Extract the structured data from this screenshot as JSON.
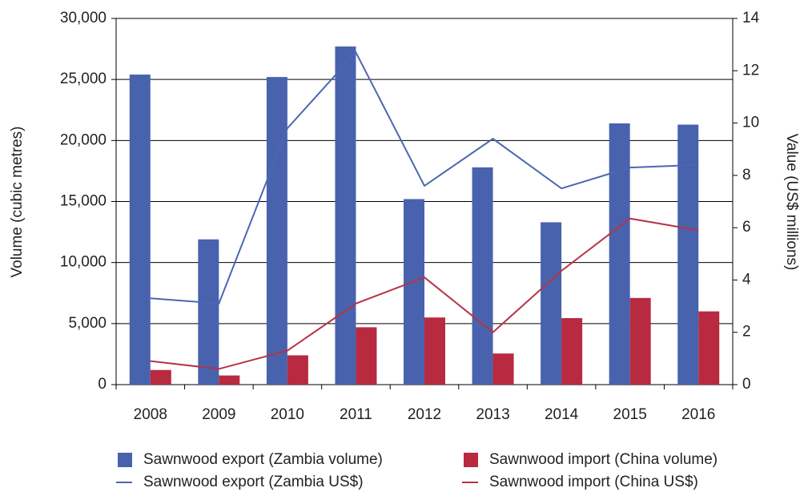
{
  "chart_data": {
    "type": "bar",
    "categories": [
      "2008",
      "2009",
      "2010",
      "2011",
      "2012",
      "2013",
      "2014",
      "2015",
      "2016"
    ],
    "series": [
      {
        "name": "Sawnwood export (Zambia volume)",
        "type": "bar",
        "color": "#4862ad",
        "values": [
          25400,
          11900,
          25200,
          27700,
          15200,
          17800,
          13300,
          21400,
          21300
        ]
      },
      {
        "name": "Sawnwood import (China volume)",
        "type": "bar",
        "color": "#b82a3f",
        "values": [
          1200,
          750,
          2400,
          4700,
          5500,
          2550,
          5450,
          7100,
          6000
        ]
      },
      {
        "name": "Sawnwood export (Zambia US$)",
        "type": "line",
        "axis": "y2",
        "color": "#4b66b2",
        "values": [
          3.3,
          3.1,
          9.8,
          12.7,
          7.6,
          9.4,
          7.5,
          8.3,
          8.4
        ]
      },
      {
        "name": "Sawnwood import (China US$)",
        "type": "line",
        "axis": "y2",
        "color": "#b53446",
        "values": [
          0.9,
          0.6,
          1.3,
          3.1,
          4.1,
          2.0,
          4.35,
          6.35,
          5.9
        ]
      }
    ],
    "ylabel": "Volume (cubic metres)",
    "y2label": "Value (US$ millions)",
    "ylim": [
      0,
      30000
    ],
    "yticks": [
      0,
      {
        "value": 5000,
        "label": "5,000"
      },
      {
        "value": 10000,
        "label": "10,000"
      },
      {
        "value": 15000,
        "label": "15,000"
      },
      {
        "value": 20000,
        "label": "20,000"
      },
      {
        "value": 25000,
        "label": "25,000"
      },
      {
        "value": 30000,
        "label": "30,000"
      }
    ],
    "y2lim": [
      0,
      14
    ],
    "y2ticks": [
      0,
      2,
      4,
      6,
      8,
      10,
      12,
      14
    ],
    "grid": true,
    "legend": "bottom"
  }
}
